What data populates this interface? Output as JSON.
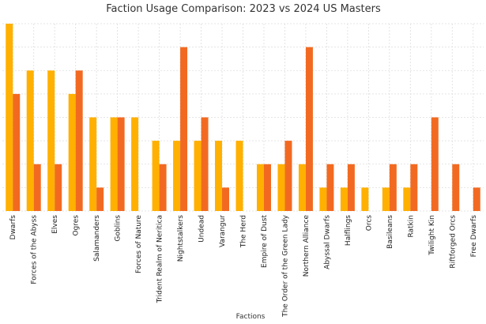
{
  "chart_data": {
    "type": "bar",
    "title": "Faction Usage Comparison: 2023 vs 2024 US Masters",
    "xlabel": "Factions",
    "ylabel": "",
    "categories": [
      "Dwarfs",
      "Forces of the Abyss",
      "Elves",
      "Ogres",
      "Salamanders",
      "Goblins",
      "Forces of Nature",
      "Trident Realm of Neritica",
      "Nightstalkers",
      "Undead",
      "Varangur",
      "The Herd",
      "Empire of Dust",
      "The Order of the Green Lady",
      "Northern Alliance",
      "Abyssal Dwarfs",
      "Halflings",
      "Orcs",
      "Basileans",
      "Ratkin",
      "Twilight Kin",
      "Riftforged Orcs",
      "Free Dwarfs"
    ],
    "series": [
      {
        "values": [
          8,
          6,
          6,
          5,
          4,
          4,
          4,
          3,
          3,
          3,
          3,
          3,
          2,
          2,
          2,
          1,
          1,
          1,
          1,
          1,
          0,
          0,
          0
        ],
        "color": "#FFB000"
      },
      {
        "values": [
          5,
          2,
          2,
          6,
          1,
          4,
          0,
          2,
          7,
          4,
          1,
          0,
          2,
          3,
          7,
          2,
          2,
          0,
          2,
          2,
          4,
          2,
          1
        ],
        "color": "#F26A21"
      }
    ],
    "ylim": [
      0,
      8
    ],
    "grid": true,
    "legend": "none"
  }
}
